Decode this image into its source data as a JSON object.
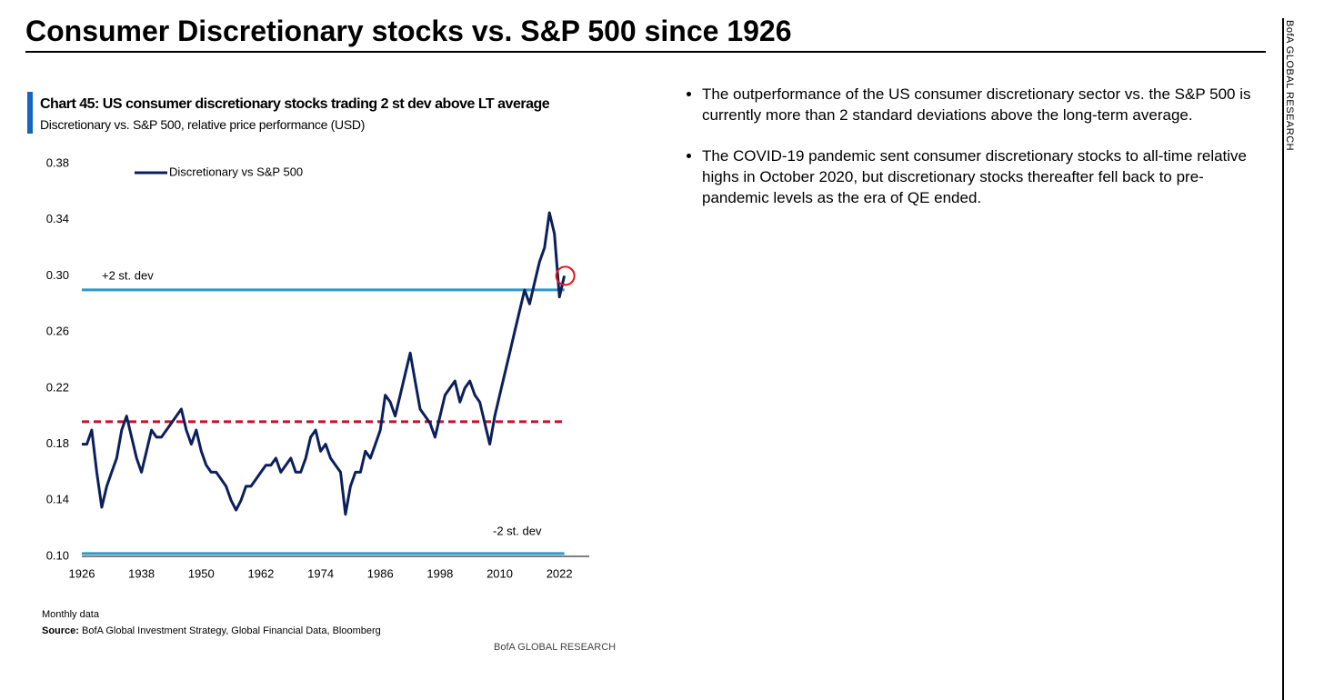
{
  "header": {
    "title": "Consumer Discretionary stocks vs. S&P 500 since 1926"
  },
  "sidebar": {
    "label": "BofA GLOBAL RESEARCH"
  },
  "chart_data": {
    "type": "line",
    "title": "Chart 45: US consumer discretionary stocks trading 2 st dev above LT average",
    "subtitle": "Discretionary vs. S&P 500, relative price performance (USD)",
    "note": "Monthly data",
    "source_label": "Source:",
    "source": "BofA Global Investment Strategy, Global Financial Data, Bloomberg",
    "credit": "BofA GLOBAL RESEARCH",
    "x": [
      1926,
      1927,
      1928,
      1929,
      1930,
      1931,
      1932,
      1933,
      1934,
      1935,
      1936,
      1937,
      1938,
      1939,
      1940,
      1941,
      1942,
      1943,
      1944,
      1945,
      1946,
      1947,
      1948,
      1949,
      1950,
      1951,
      1952,
      1953,
      1954,
      1955,
      1956,
      1957,
      1958,
      1959,
      1960,
      1961,
      1962,
      1963,
      1964,
      1965,
      1966,
      1967,
      1968,
      1969,
      1970,
      1971,
      1972,
      1973,
      1974,
      1975,
      1976,
      1977,
      1978,
      1979,
      1980,
      1981,
      1982,
      1983,
      1984,
      1985,
      1986,
      1987,
      1988,
      1989,
      1990,
      1991,
      1992,
      1993,
      1994,
      1995,
      1996,
      1997,
      1998,
      1999,
      2000,
      2001,
      2002,
      2003,
      2004,
      2005,
      2006,
      2007,
      2008,
      2009,
      2010,
      2011,
      2012,
      2013,
      2014,
      2015,
      2016,
      2017,
      2018,
      2019,
      2020,
      2021,
      2022,
      2023
    ],
    "series": [
      {
        "name": "Discretionary vs  S&P 500",
        "color": "#0b1f5c",
        "values": [
          0.18,
          0.18,
          0.19,
          0.16,
          0.135,
          0.15,
          0.16,
          0.17,
          0.19,
          0.2,
          0.185,
          0.17,
          0.16,
          0.175,
          0.19,
          0.185,
          0.185,
          0.19,
          0.195,
          0.2,
          0.205,
          0.19,
          0.18,
          0.19,
          0.175,
          0.165,
          0.16,
          0.16,
          0.155,
          0.15,
          0.14,
          0.133,
          0.14,
          0.15,
          0.15,
          0.155,
          0.16,
          0.165,
          0.165,
          0.17,
          0.16,
          0.165,
          0.17,
          0.16,
          0.16,
          0.17,
          0.185,
          0.19,
          0.175,
          0.18,
          0.17,
          0.165,
          0.16,
          0.13,
          0.15,
          0.16,
          0.16,
          0.175,
          0.17,
          0.18,
          0.19,
          0.215,
          0.21,
          0.2,
          0.215,
          0.23,
          0.245,
          0.225,
          0.205,
          0.2,
          0.195,
          0.185,
          0.2,
          0.215,
          0.22,
          0.225,
          0.21,
          0.22,
          0.225,
          0.215,
          0.21,
          0.195,
          0.18,
          0.2,
          0.215,
          0.23,
          0.245,
          0.26,
          0.275,
          0.29,
          0.28,
          0.295,
          0.31,
          0.32,
          0.345,
          0.33,
          0.285,
          0.3
        ]
      }
    ],
    "reference_lines": [
      {
        "label": "+2 st. dev",
        "value": 0.29,
        "color": "#2a9bc8",
        "style": "solid"
      },
      {
        "value": 0.196,
        "color": "#c8102e",
        "style": "dashed"
      },
      {
        "label": "-2 st. dev",
        "value": 0.102,
        "color": "#2a9bc8",
        "style": "solid"
      }
    ],
    "xlim": [
      1926,
      2028
    ],
    "xticks": [
      1926,
      1938,
      1950,
      1962,
      1974,
      1986,
      1998,
      2010,
      2022
    ],
    "ylim": [
      0.1,
      0.38
    ],
    "yticks": [
      {
        "value": 0.1,
        "label": "0.10"
      },
      0.14,
      0.18,
      0.22,
      0.26,
      {
        "value": 0.3,
        "label": "0.30"
      },
      0.34,
      0.38
    ],
    "legend": "top-left",
    "highlight_last": true,
    "highlight_color": "#e0141e"
  },
  "bullets": [
    "The outperformance of the US consumer discretionary sector vs. the S&P 500 is currently more than 2 standard deviations above the long-term average.",
    "The COVID-19 pandemic sent consumer discretionary stocks to all-time relative highs in October 2020, but discretionary stocks thereafter fell back to pre-pandemic levels as the era of QE ended."
  ]
}
